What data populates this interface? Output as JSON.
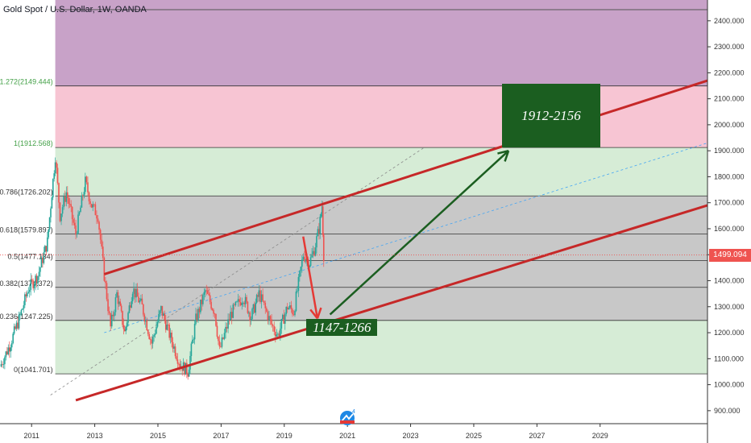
{
  "header": {
    "title": "Gold Spot / U.S. Dollar, 1W, OANDA"
  },
  "colors": {
    "fib_top": "#b07ab0",
    "fib_1272": "#f7c5d3",
    "fib_1": "#d6ecd6",
    "fib_mid": "#c8c8c8",
    "channel": "#c62828",
    "arrow_up": "#1b5e20",
    "arrow_down": "#e53935",
    "candle_up": "#26a69a",
    "candle_down": "#ef5350",
    "badge": "#1b5e20",
    "price_line": "#ef5350"
  },
  "current_price": {
    "value": 1499.094,
    "label": "1499.094"
  },
  "targets": [
    {
      "label": "1912-2156",
      "low": 1912,
      "high": 2156
    },
    {
      "label": "1147-1266",
      "low": 1147,
      "high": 1266
    }
  ],
  "watermark": {
    "name": "tradingview-logo-icon",
    "text": "4"
  },
  "chart_data": {
    "type": "line",
    "title": "Gold Spot / U.S. Dollar, 1W, OANDA",
    "xlabel": "",
    "ylabel": "",
    "ylim": [
      850,
      2480
    ],
    "xlim": [
      2010.0,
      2032.4
    ],
    "x_ticks": [
      "2011",
      "2013",
      "2015",
      "2017",
      "2019",
      "2021",
      "2023",
      "2025",
      "2027",
      "2029"
    ],
    "y_ticks": [
      "900.000",
      "1000.000",
      "1100.000",
      "1200.000",
      "1300.000",
      "1400.000",
      "1500.000",
      "1600.000",
      "1700.000",
      "1800.000",
      "1900.000",
      "2000.000",
      "2100.000",
      "2200.000",
      "2300.000",
      "2400.000"
    ],
    "fib_levels": [
      {
        "ratio": "0",
        "price": 1041.701,
        "label": "0(1041.701)"
      },
      {
        "ratio": "0.236",
        "price": 1247.225,
        "label": "0.236(1247.225)"
      },
      {
        "ratio": "0.382",
        "price": 1374.372,
        "label": "0.382(1374.372)"
      },
      {
        "ratio": "0.5",
        "price": 1477.134,
        "label": "0.5(1477.134)"
      },
      {
        "ratio": "0.618",
        "price": 1579.897,
        "label": "0.618(1579.897)"
      },
      {
        "ratio": "0.786",
        "price": 1726.202,
        "label": "0.786(1726.202)"
      },
      {
        "ratio": "1",
        "price": 1912.568,
        "label": "1(1912.568)"
      },
      {
        "ratio": "1.272",
        "price": 2149.444,
        "label": "1.272(2149.444)"
      }
    ],
    "series": [
      {
        "name": "",
        "values": [
          {
            "x": 2010.0,
            "y": 1070
          },
          {
            "x": 2010.3,
            "y": 1150
          },
          {
            "x": 2010.6,
            "y": 1250
          },
          {
            "x": 2010.9,
            "y": 1370
          },
          {
            "x": 2011.2,
            "y": 1420
          },
          {
            "x": 2011.5,
            "y": 1550
          },
          {
            "x": 2011.75,
            "y": 1880
          },
          {
            "x": 2011.9,
            "y": 1650
          },
          {
            "x": 2012.1,
            "y": 1740
          },
          {
            "x": 2012.4,
            "y": 1580
          },
          {
            "x": 2012.7,
            "y": 1780
          },
          {
            "x": 2012.9,
            "y": 1690
          },
          {
            "x": 2013.1,
            "y": 1650
          },
          {
            "x": 2013.3,
            "y": 1420
          },
          {
            "x": 2013.5,
            "y": 1220
          },
          {
            "x": 2013.7,
            "y": 1350
          },
          {
            "x": 2013.95,
            "y": 1200
          },
          {
            "x": 2014.2,
            "y": 1370
          },
          {
            "x": 2014.5,
            "y": 1300
          },
          {
            "x": 2014.8,
            "y": 1160
          },
          {
            "x": 2015.1,
            "y": 1290
          },
          {
            "x": 2015.4,
            "y": 1180
          },
          {
            "x": 2015.7,
            "y": 1080
          },
          {
            "x": 2015.95,
            "y": 1050
          },
          {
            "x": 2016.2,
            "y": 1250
          },
          {
            "x": 2016.5,
            "y": 1360
          },
          {
            "x": 2016.8,
            "y": 1280
          },
          {
            "x": 2016.95,
            "y": 1130
          },
          {
            "x": 2017.3,
            "y": 1270
          },
          {
            "x": 2017.7,
            "y": 1340
          },
          {
            "x": 2017.95,
            "y": 1260
          },
          {
            "x": 2018.2,
            "y": 1350
          },
          {
            "x": 2018.6,
            "y": 1230
          },
          {
            "x": 2018.8,
            "y": 1190
          },
          {
            "x": 2019.1,
            "y": 1300
          },
          {
            "x": 2019.3,
            "y": 1280
          },
          {
            "x": 2019.6,
            "y": 1500
          },
          {
            "x": 2019.8,
            "y": 1470
          },
          {
            "x": 2019.95,
            "y": 1520
          },
          {
            "x": 2020.1,
            "y": 1600
          },
          {
            "x": 2020.2,
            "y": 1690
          },
          {
            "x": 2020.25,
            "y": 1499
          }
        ]
      }
    ],
    "channel_upper": [
      {
        "x": 2013.3,
        "y": 1425
      },
      {
        "x": 2032.4,
        "y": 2170
      }
    ],
    "channel_lower": [
      {
        "x": 2012.4,
        "y": 940
      },
      {
        "x": 2032.4,
        "y": 1690
      }
    ],
    "guide_lines": [
      {
        "style": "dashed-blue",
        "from": {
          "x": 2013.3,
          "y": 1200
        },
        "to": {
          "x": 2032.4,
          "y": 1930
        }
      },
      {
        "style": "dashed-gray",
        "from": {
          "x": 2011.6,
          "y": 960
        },
        "to": {
          "x": 2023.4,
          "y": 1910
        }
      }
    ],
    "arrows": [
      {
        "name": "down-arrow",
        "from": {
          "x": 2019.6,
          "y": 1570
        },
        "to": {
          "x": 2020.05,
          "y": 1255
        }
      },
      {
        "name": "up-arrow",
        "from": {
          "x": 2020.45,
          "y": 1270
        },
        "to": {
          "x": 2026.1,
          "y": 1900
        }
      }
    ],
    "grid": false
  }
}
